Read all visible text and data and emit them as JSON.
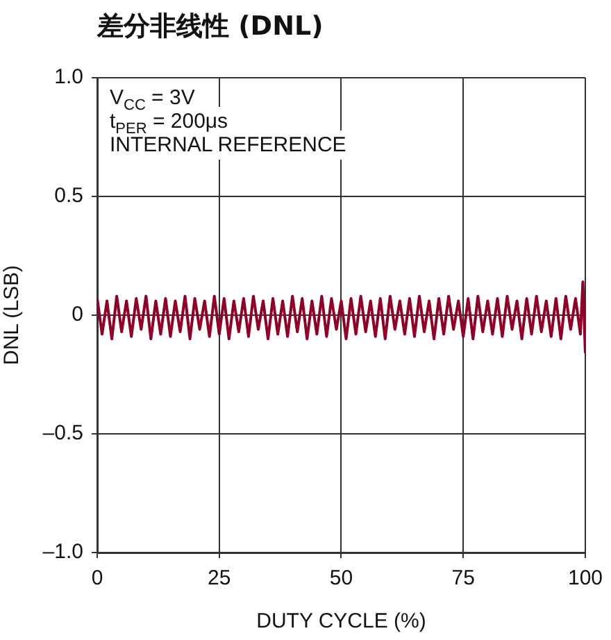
{
  "chart_data": {
    "type": "line",
    "title": "差分非线性 (DNL)",
    "xlabel": "DUTY CYCLE (%)",
    "ylabel": "DNL (LSB)",
    "annotations": [
      "V$_{CC}$ = 3V",
      "t$_{PER}$ = 200μs",
      "INTERNAL REFERENCE"
    ],
    "xlim": [
      0,
      100
    ],
    "xticks": [
      0,
      25,
      50,
      75,
      100
    ],
    "ylim": [
      -1,
      1
    ],
    "yticks": [
      {
        "value": -1,
        "label": "–1.0"
      },
      {
        "value": -0.5,
        "label": "–0.5"
      },
      0,
      0.5,
      {
        "value": 1,
        "label": "1.0"
      }
    ],
    "grid": true,
    "legend": false,
    "marker": "none",
    "line_style": "solid",
    "x": [
      0,
      1,
      2,
      3,
      4,
      5,
      6,
      7,
      8,
      9,
      10,
      11,
      12,
      13,
      14,
      15,
      16,
      17,
      18,
      19,
      20,
      21,
      22,
      23,
      24,
      25,
      26,
      27,
      28,
      29,
      30,
      31,
      32,
      33,
      34,
      35,
      36,
      37,
      38,
      39,
      40,
      41,
      42,
      43,
      44,
      45,
      46,
      47,
      48,
      49,
      50,
      51,
      52,
      53,
      54,
      55,
      56,
      57,
      58,
      59,
      60,
      61,
      62,
      63,
      64,
      65,
      66,
      67,
      68,
      69,
      70,
      71,
      72,
      73,
      74,
      75,
      76,
      77,
      78,
      79,
      80,
      81,
      82,
      83,
      84,
      85,
      86,
      87,
      88,
      89,
      90,
      91,
      92,
      93,
      94,
      95,
      96,
      97,
      98,
      99,
      99.5,
      100
    ],
    "series": [
      {
        "color": "#900028",
        "values": [
          0.07,
          -0.08,
          0.06,
          -0.1,
          0.08,
          -0.07,
          0.06,
          -0.09,
          0.07,
          -0.06,
          0.08,
          -0.1,
          0.06,
          -0.08,
          0.07,
          -0.09,
          0.06,
          -0.07,
          0.08,
          -0.1,
          0.07,
          -0.06,
          0.06,
          -0.09,
          0.08,
          -0.08,
          0.07,
          -0.1,
          0.06,
          -0.07,
          0.07,
          -0.09,
          0.08,
          -0.06,
          0.06,
          -0.1,
          0.07,
          -0.08,
          0.06,
          -0.09,
          0.08,
          -0.07,
          0.07,
          -0.1,
          0.06,
          -0.08,
          0.08,
          -0.09,
          0.07,
          -0.06,
          0.06,
          -0.1,
          0.07,
          -0.08,
          0.08,
          -0.07,
          0.06,
          -0.09,
          0.07,
          -0.1,
          0.08,
          -0.06,
          0.06,
          -0.08,
          0.07,
          -0.09,
          0.08,
          -0.07,
          0.06,
          -0.1,
          0.07,
          -0.08,
          0.08,
          -0.06,
          0.06,
          -0.09,
          0.07,
          -0.1,
          0.08,
          -0.07,
          0.06,
          -0.08,
          0.07,
          -0.09,
          0.08,
          -0.06,
          0.06,
          -0.1,
          0.07,
          -0.08,
          0.08,
          -0.07,
          0.06,
          -0.09,
          0.07,
          -0.1,
          0.08,
          -0.06,
          0.07,
          -0.08,
          0.14,
          -0.16
        ]
      }
    ]
  }
}
